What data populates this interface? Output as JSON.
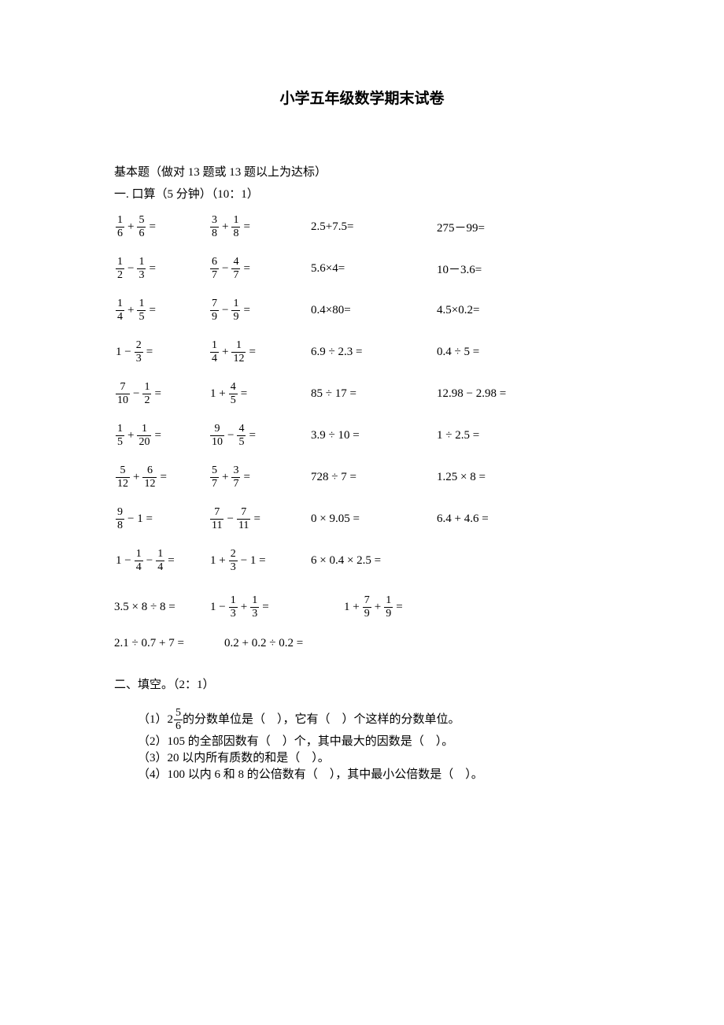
{
  "title": "小学五年级数学期末试卷",
  "basic_note": "基本题（做对 13 题或 13 题以上为达标）",
  "section1_header": "一. 口算（5 分钟）（10：1）",
  "rows": [
    {
      "c1": {
        "type": "frac",
        "a": "1",
        "b": "6",
        "op": "+",
        "c": "5",
        "d": "6"
      },
      "c2": {
        "type": "frac",
        "a": "3",
        "b": "8",
        "op": "+",
        "c": "1",
        "d": "8"
      },
      "c3": "2.5+7.5=",
      "c4": "275－99="
    },
    {
      "c1": {
        "type": "frac",
        "a": "1",
        "b": "2",
        "op": "−",
        "c": "1",
        "d": "3"
      },
      "c2": {
        "type": "frac",
        "a": "6",
        "b": "7",
        "op": "−",
        "c": "4",
        "d": "7"
      },
      "c3": "5.6×4=",
      "c4": "10－3.6="
    },
    {
      "c1": {
        "type": "frac",
        "a": "1",
        "b": "4",
        "op": "+",
        "c": "1",
        "d": "5"
      },
      "c2": {
        "type": "frac",
        "a": "7",
        "b": "9",
        "op": "−",
        "c": "1",
        "d": "9"
      },
      "c3": "0.4×80=",
      "c4": "4.5×0.2="
    },
    {
      "c1": {
        "type": "mixedL",
        "lead": "1 −",
        "a": "2",
        "b": "3"
      },
      "c2": {
        "type": "frac",
        "a": "1",
        "b": "4",
        "op": "+",
        "c": "1",
        "d": "12"
      },
      "c3": "6.9 ÷ 2.3 =",
      "c4": "0.4 ÷ 5 ="
    },
    {
      "c1": {
        "type": "frac",
        "a": "7",
        "b": "10",
        "op": "−",
        "c": "1",
        "d": "2"
      },
      "c2": {
        "type": "mixedL",
        "lead": "1 +",
        "a": "4",
        "b": "5"
      },
      "c3": "85 ÷ 17 =",
      "c4": "12.98 − 2.98 ="
    },
    {
      "c1": {
        "type": "frac",
        "a": "1",
        "b": "5",
        "op": "+",
        "c": "1",
        "d": "20"
      },
      "c2": {
        "type": "frac",
        "a": "9",
        "b": "10",
        "op": "−",
        "c": "4",
        "d": "5"
      },
      "c3": "3.9 ÷ 10 =",
      "c4": "1 ÷ 2.5 ="
    },
    {
      "c1": {
        "type": "frac",
        "a": "5",
        "b": "12",
        "op": "+",
        "c": "6",
        "d": "12"
      },
      "c2": {
        "type": "frac",
        "a": "5",
        "b": "7",
        "op": "+",
        "c": "3",
        "d": "7"
      },
      "c3": "728 ÷ 7 =",
      "c4": "1.25 × 8 ="
    },
    {
      "c1": {
        "type": "fracR",
        "a": "9",
        "b": "8",
        "tail": "− 1 ="
      },
      "c2": {
        "type": "frac",
        "a": "7",
        "b": "11",
        "op": "−",
        "c": "7",
        "d": "11"
      },
      "c3": "0 × 9.05 =",
      "c4": "6.4 + 4.6 ="
    },
    {
      "c1": {
        "type": "triple",
        "lead": "1 −",
        "a": "1",
        "b": "4",
        "op": "−",
        "c": "1",
        "d": "4"
      },
      "c2": {
        "type": "mixedR",
        "lead": "1 +",
        "a": "2",
        "b": "3",
        "tail": "− 1 ="
      },
      "c3": "6 × 0.4 × 2.5 =",
      "c4": ""
    }
  ],
  "row_triple": {
    "c1": "3.5 × 8 ÷ 8 =",
    "c2": {
      "type": "triple",
      "lead": "1 −",
      "a": "1",
      "b": "3",
      "op": "+",
      "c": "1",
      "d": "3"
    },
    "c3": {
      "type": "triple",
      "lead": "1 +",
      "a": "7",
      "b": "9",
      "op": "+",
      "c": "1",
      "d": "9"
    }
  },
  "row_pair": {
    "c1": "2.1 ÷ 0.7 + 7 =",
    "c2": "0.2 + 0.2 ÷ 0.2 ="
  },
  "section2_header": "二、填空。（2：1）",
  "fill": {
    "q1_pre": "（1）",
    "q1_mixed_whole": "2",
    "q1_mixed_num": "5",
    "q1_mixed_den": "6",
    "q1_post": "的分数单位是（　），它有（　）个这样的分数单位。",
    "q2": "（2）105 的全部因数有（　）个，其中最大的因数是（　）。",
    "q3": "（3）20 以内所有质数的和是（　）。",
    "q4": "（4）100 以内 6 和 8 的公倍数有（　），其中最小公倍数是（　）。"
  },
  "colors": {
    "text": "#000000",
    "bg": "#ffffff"
  }
}
